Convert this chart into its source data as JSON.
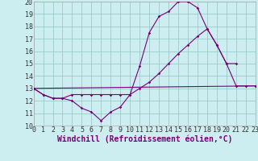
{
  "xlabel": "Windchill (Refroidissement éolien,°C)",
  "xlim": [
    0,
    23
  ],
  "ylim": [
    10,
    20
  ],
  "xtick_labels": [
    "0",
    "1",
    "2",
    "3",
    "4",
    "5",
    "6",
    "7",
    "8",
    "9",
    "10",
    "11",
    "12",
    "13",
    "14",
    "15",
    "16",
    "17",
    "18",
    "19",
    "20",
    "21",
    "22",
    "23"
  ],
  "ytick_labels": [
    "10",
    "11",
    "12",
    "13",
    "14",
    "15",
    "16",
    "17",
    "18",
    "19",
    "20"
  ],
  "bg_color": "#cceef0",
  "line_color": "#770077",
  "grid_color": "#99cccc",
  "series1_x": [
    0,
    1,
    2,
    3,
    4,
    5,
    6,
    7,
    8,
    9,
    10,
    11,
    12,
    13,
    14,
    15,
    16,
    17,
    18,
    19,
    20,
    21
  ],
  "series1_y": [
    13.0,
    12.5,
    12.2,
    12.2,
    12.0,
    11.4,
    11.1,
    10.4,
    11.1,
    11.5,
    12.5,
    14.8,
    17.5,
    18.8,
    19.2,
    20.0,
    20.0,
    19.5,
    17.8,
    16.5,
    15.0,
    15.0
  ],
  "series2_x": [
    0,
    1,
    2,
    3,
    4,
    5,
    6,
    7,
    8,
    9,
    10,
    11,
    12,
    13,
    14,
    15,
    16,
    17,
    18,
    19,
    20,
    21,
    22,
    23
  ],
  "series2_y": [
    13.0,
    12.5,
    12.2,
    12.2,
    12.5,
    12.5,
    12.5,
    12.5,
    12.5,
    12.5,
    12.5,
    13.0,
    13.5,
    14.2,
    15.0,
    15.8,
    16.5,
    17.2,
    17.8,
    16.5,
    15.0,
    13.2,
    13.2,
    13.2
  ],
  "series3_x": [
    0,
    23
  ],
  "series3_y": [
    13.0,
    13.2
  ],
  "font_size": 6,
  "xlabel_fontsize": 7,
  "marker": "D",
  "marker_size": 1.8,
  "lw": 0.8
}
